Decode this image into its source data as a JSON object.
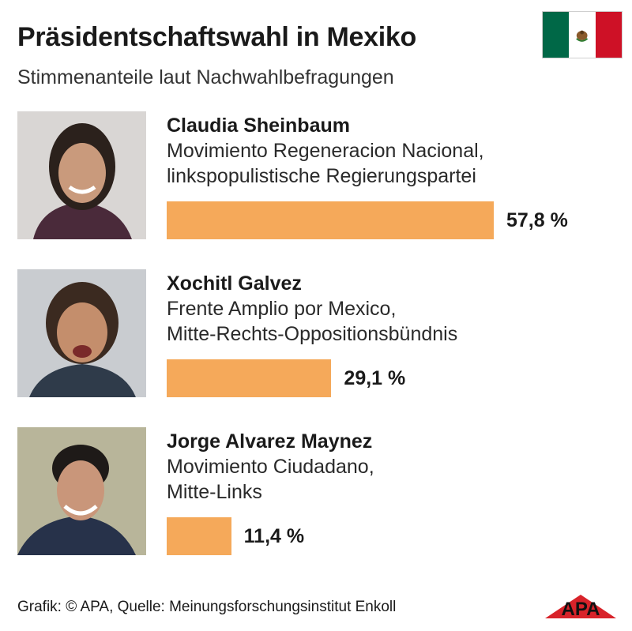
{
  "title": "Präsidentschaftswahl in Mexiko",
  "subtitle": "Stimmenanteile laut Nachwahlbefragungen",
  "source": "Grafik: © APA, Quelle: Meinungsforschungsinstitut Enkoll",
  "logo_text": "APA",
  "colors": {
    "bar": "#f5a95a",
    "flag_green": "#006847",
    "flag_red": "#ce1126"
  },
  "chart_data": {
    "type": "bar",
    "title": "Präsidentschaftswahl in Mexiko",
    "subtitle": "Stimmenanteile laut Nachwahlbefragungen",
    "xlabel": "",
    "ylabel": "",
    "unit": "%",
    "xlim": [
      0,
      100
    ],
    "categories": [
      "Claudia Sheinbaum",
      "Xochitl Galvez",
      "Jorge Alvarez Maynez"
    ],
    "values": [
      57.8,
      29.1,
      11.4
    ],
    "value_labels": [
      "57,8 %",
      "29,1 %",
      "11,4 %"
    ],
    "candidates": [
      {
        "name": "Claudia Sheinbaum",
        "party_line1": "Movimiento Regeneracion Nacional,",
        "party_line2": "linkspopulistische Regierungspartei",
        "value": 57.8,
        "label": "57,8 %"
      },
      {
        "name": "Xochitl Galvez",
        "party_line1": "Frente Amplio por Mexico,",
        "party_line2": "Mitte-Rechts-Oppositionsbündnis",
        "value": 29.1,
        "label": "29,1 %"
      },
      {
        "name": "Jorge Alvarez Maynez",
        "party_line1": "Movimiento Ciudadano,",
        "party_line2": "Mitte-Links",
        "value": 11.4,
        "label": "11,4 %"
      }
    ]
  }
}
